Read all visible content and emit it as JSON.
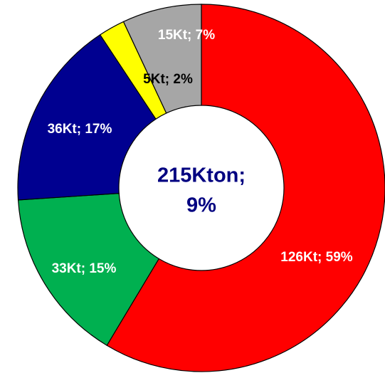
{
  "chart_data": {
    "type": "donut",
    "categories": [
      "126Kt",
      "33Kt",
      "36Kt",
      "5Kt",
      "15Kt"
    ],
    "values": [
      126,
      33,
      36,
      5,
      15
    ],
    "value_labels": [
      "126Kt; 59%",
      "33Kt; 15%",
      "36Kt; 17%",
      "5Kt; 2%",
      "15Kt; 7%"
    ],
    "colors": [
      "#ff0000",
      "#00b050",
      "#000090",
      "#ffff00",
      "#a6a6a6"
    ],
    "label_colors": [
      "#ffffff",
      "#ffffff",
      "#ffffff",
      "#000000",
      "#ffffff"
    ],
    "center_label": [
      "215Kton;",
      "9%"
    ],
    "center_label_color": "#000080"
  }
}
